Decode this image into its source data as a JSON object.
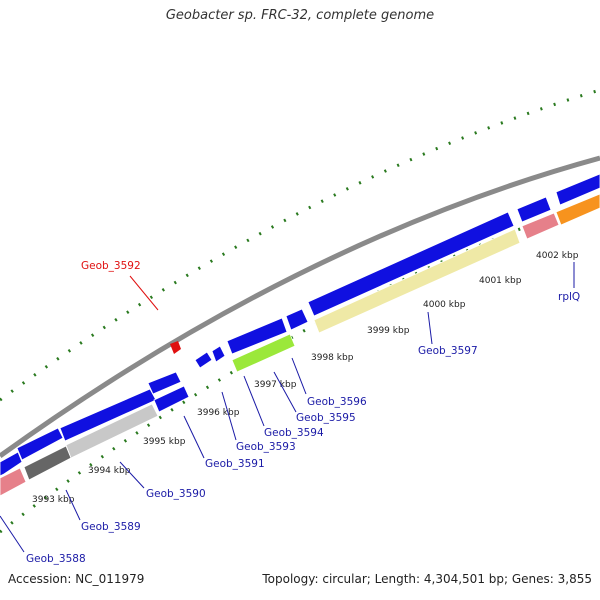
{
  "title": "Geobacter sp. FRC-32, complete genome",
  "footer": {
    "accession": "Accession: NC_011979",
    "summary": "Topology: circular; Length: 4,304,501 bp; Genes: 3,855"
  },
  "colors": {
    "backbone": "#8a8a8a",
    "gene_blue": "#1010e0",
    "tick_green": "#2a7a1f",
    "label_blue": "#1a1aa6",
    "label_red": "#e01010",
    "pink": "#e6808a",
    "light_gray": "#c8c8c8",
    "dark_gray": "#666666",
    "khaki": "#efe9a6",
    "lime": "#9be83a",
    "orange": "#f7931e"
  },
  "kbp_labels": [
    "3993 kbp",
    "3994 kbp",
    "3995 kbp",
    "3996 kbp",
    "3997 kbp",
    "3998 kbp",
    "3999 kbp",
    "4000 kbp",
    "4001 kbp",
    "4002 kbp"
  ],
  "gene_labels": [
    {
      "text": "Geob_3588",
      "color": "blue"
    },
    {
      "text": "Geob_3589",
      "color": "blue"
    },
    {
      "text": "Geob_3590",
      "color": "blue"
    },
    {
      "text": "Geob_3591",
      "color": "blue"
    },
    {
      "text": "Geob_3593",
      "color": "blue"
    },
    {
      "text": "Geob_3594",
      "color": "blue"
    },
    {
      "text": "Geob_3595",
      "color": "blue"
    },
    {
      "text": "Geob_3596",
      "color": "blue"
    },
    {
      "text": "Geob_3597",
      "color": "blue"
    },
    {
      "text": "rplQ",
      "color": "blue"
    },
    {
      "text": "Geob_3592",
      "color": "red"
    }
  ]
}
